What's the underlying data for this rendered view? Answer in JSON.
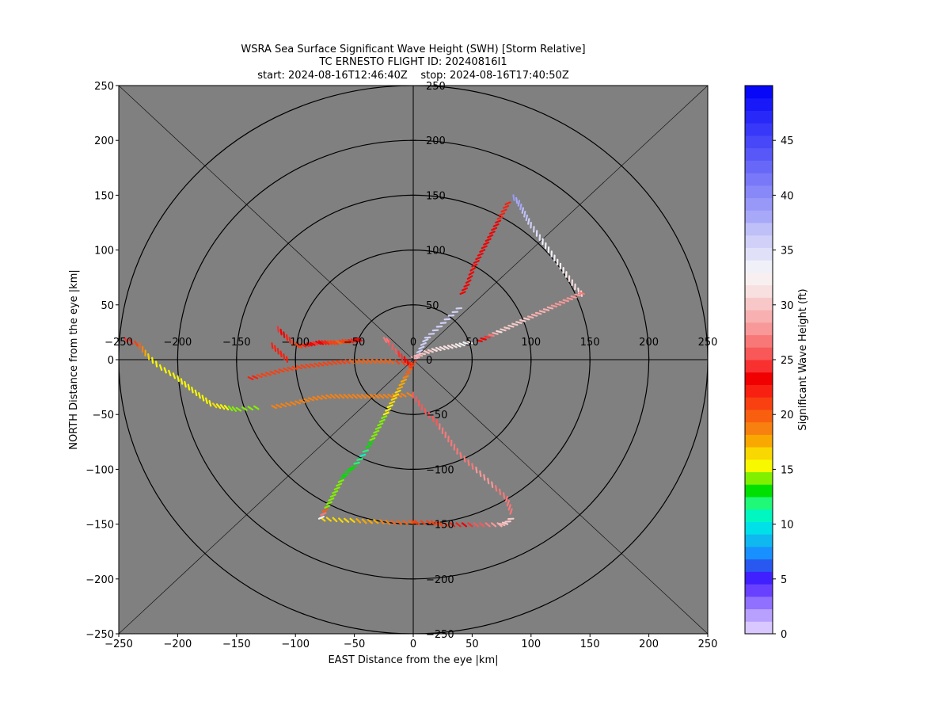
{
  "chart_data": {
    "type": "scatter",
    "title": [
      "WSRA Sea Surface Significant Wave Height (SWH) [Storm Relative]",
      "TC ERNESTO FLIGHT ID: 20240816I1",
      "start: 2024-08-16T12:46:40Z    stop: 2024-08-16T17:40:50Z"
    ],
    "xlabel": "EAST Distance from the eye |km|",
    "ylabel": "NORTH Distance from the eye |km|",
    "xlim": [
      -250,
      250
    ],
    "ylim": [
      -250,
      250
    ],
    "xticks": [
      -250,
      -200,
      -150,
      -100,
      -50,
      0,
      50,
      100,
      150,
      200,
      250
    ],
    "yticks": [
      -250,
      -200,
      -150,
      -100,
      -50,
      0,
      50,
      100,
      150,
      200,
      250
    ],
    "inner_x_tick_labels": [
      "−250",
      "−200",
      "−150",
      "−100",
      "−50",
      "0",
      "50",
      "100",
      "150",
      "200",
      "250"
    ],
    "inner_y_tick_labels": [
      "−250",
      "−200",
      "−150",
      "−100",
      "−50",
      "0",
      "50",
      "100",
      "150",
      "200",
      "250"
    ],
    "outer_x_tick_labels": [
      "−250",
      "−200",
      "−150",
      "−100",
      "−50",
      "0",
      "50",
      "100",
      "150",
      "200",
      "250"
    ],
    "outer_y_tick_labels": [
      "−250",
      "−200",
      "−150",
      "−100",
      "−50",
      "0",
      "50",
      "100",
      "150",
      "200",
      "250"
    ],
    "range_rings_km": [
      50,
      100,
      150,
      200,
      250
    ],
    "background_color": "#808080",
    "colorbar": {
      "label": "Significant Wave Height (ft)",
      "min": 0,
      "max": 50,
      "ticks": [
        0,
        5,
        10,
        15,
        20,
        25,
        30,
        35,
        40,
        45
      ],
      "tick_labels": [
        "0",
        "5",
        "10",
        "15",
        "20",
        "25",
        "30",
        "35",
        "40",
        "45"
      ],
      "colors": [
        "#d8c8ff",
        "#b8a0ff",
        "#9070ff",
        "#6840ff",
        "#4020ff",
        "#2858f0",
        "#1890ff",
        "#10b8f0",
        "#00e0e8",
        "#00f8c0",
        "#20f878",
        "#00e000",
        "#80f000",
        "#f8f800",
        "#f8d800",
        "#f8a800",
        "#f88010",
        "#f86010",
        "#f84010",
        "#f82010",
        "#f00000",
        "#f83030",
        "#f85858",
        "#f87878",
        "#f89898",
        "#f8b0b0",
        "#f8c8c8",
        "#f8e0e0",
        "#f8f0f0",
        "#f0f0f8",
        "#e0e0f8",
        "#d0d0f8",
        "#c0c0f8",
        "#a8a8f8",
        "#9898f8",
        "#8888f8",
        "#7878f8",
        "#6868f8",
        "#5858f8",
        "#4848f8",
        "#3838f8",
        "#2828f8",
        "#1818f8",
        "#0808f8"
      ]
    },
    "series": [
      {
        "x": [
          -245,
          -232,
          -225,
          -215,
          -200,
          -185,
          -170,
          -160,
          -150,
          -140,
          -130
        ],
        "y": [
          20,
          15,
          5,
          -5,
          -15,
          -28,
          -40,
          -42,
          -44,
          -43,
          -42
        ],
        "swh": [
          24,
          20,
          16,
          15,
          15,
          15,
          16,
          15,
          14,
          14,
          15
        ]
      },
      {
        "x": [
          -140,
          -125,
          -110,
          -95,
          -80,
          -65,
          -50,
          -35,
          -20,
          -10,
          0
        ],
        "y": [
          -16,
          -12,
          -8,
          -5,
          -3,
          -1,
          0,
          0,
          0,
          -1,
          -3
        ],
        "swh": [
          22,
          21,
          21,
          21,
          21,
          21,
          20,
          20,
          20,
          21,
          22
        ]
      },
      {
        "x": [
          -120,
          -100,
          -85,
          -70,
          -55,
          -40,
          -25,
          -10,
          0
        ],
        "y": [
          -42,
          -38,
          -34,
          -32,
          -32,
          -32,
          -32,
          -31,
          -30
        ],
        "swh": [
          19,
          19,
          19,
          19,
          19,
          19,
          19,
          19,
          19
        ]
      },
      {
        "x": [
          -115,
          -110,
          -105,
          -100,
          -95,
          -90,
          -85,
          -80,
          -75,
          -70,
          -65,
          -60,
          -55,
          -50,
          -45
        ],
        "y": [
          30,
          25,
          20,
          15,
          14,
          15,
          16,
          17,
          17,
          17,
          17,
          18,
          18,
          19,
          20
        ],
        "swh": [
          24,
          23,
          22,
          21,
          22,
          23,
          24,
          23,
          22,
          21,
          20,
          21,
          22,
          23,
          24
        ]
      },
      {
        "x": [
          -120,
          -115,
          -110,
          -105
        ],
        "y": [
          15,
          10,
          5,
          0
        ],
        "swh": [
          22,
          22,
          22,
          22
        ]
      },
      {
        "x": [
          -25,
          -20,
          -15,
          -10,
          -5,
          0
        ],
        "y": [
          20,
          18,
          10,
          5,
          0,
          -5
        ],
        "swh": [
          27,
          26,
          25,
          24,
          23,
          22
        ]
      },
      {
        "x": [
          0,
          5,
          10,
          20,
          30,
          40
        ],
        "y": [
          0,
          10,
          20,
          30,
          40,
          50
        ],
        "swh": [
          36,
          36,
          36,
          36,
          36,
          36
        ]
      },
      {
        "x": [
          40,
          45,
          50,
          55,
          60,
          65,
          70,
          75,
          80
        ],
        "y": [
          60,
          70,
          85,
          95,
          105,
          115,
          125,
          135,
          145
        ],
        "swh": [
          23,
          23,
          23,
          23,
          23,
          23,
          23,
          22,
          22
        ]
      },
      {
        "x": [
          85,
          90,
          95,
          100,
          110,
          120,
          130,
          140,
          145
        ],
        "y": [
          150,
          145,
          135,
          125,
          110,
          95,
          80,
          65,
          60
        ],
        "swh": [
          39,
          38,
          37,
          36,
          34,
          33,
          32,
          31,
          30
        ]
      },
      {
        "x": [
          145,
          135,
          125,
          115,
          105,
          95,
          85,
          75,
          65,
          55
        ],
        "y": [
          60,
          55,
          50,
          45,
          40,
          35,
          30,
          25,
          20,
          15
        ],
        "swh": [
          27,
          28,
          28,
          29,
          29,
          30,
          30,
          31,
          24,
          23
        ]
      },
      {
        "x": [
          50,
          40,
          30,
          20,
          10,
          5,
          0
        ],
        "y": [
          15,
          12,
          10,
          8,
          5,
          2,
          0
        ],
        "swh": [
          32,
          32,
          31,
          31,
          30,
          29,
          28
        ]
      },
      {
        "x": [
          0,
          10,
          20,
          30,
          40,
          50,
          60,
          70,
          80,
          85
        ],
        "y": [
          -30,
          -45,
          -55,
          -70,
          -85,
          -95,
          -105,
          -115,
          -125,
          -140
        ],
        "swh": [
          26,
          26,
          26,
          27,
          27,
          27,
          28,
          27,
          27,
          26
        ]
      },
      {
        "x": [
          85,
          80,
          75,
          65,
          55,
          45,
          35,
          25,
          15,
          5,
          0
        ],
        "y": [
          -145,
          -150,
          -152,
          -152,
          -152,
          -152,
          -152,
          -152,
          -150,
          -150,
          -150
        ],
        "swh": [
          30,
          30,
          29,
          27,
          25,
          23,
          22,
          21,
          21,
          21,
          21
        ]
      },
      {
        "x": [
          0,
          -10,
          -20,
          -30,
          -40,
          -50,
          -60,
          -70,
          -80
        ],
        "y": [
          -150,
          -150,
          -150,
          -149,
          -149,
          -148,
          -148,
          -147,
          -147
        ],
        "swh": [
          20,
          20,
          19,
          18,
          18,
          17,
          17,
          17,
          17
        ]
      },
      {
        "x": [
          -80,
          -75,
          -70,
          -65,
          -60,
          -55,
          -50,
          -45,
          -40,
          -35,
          -30,
          -25,
          -20,
          -15,
          -10,
          -5,
          0
        ],
        "y": [
          -145,
          -135,
          -125,
          -115,
          -105,
          -100,
          -95,
          -88,
          -80,
          -70,
          -60,
          -50,
          -40,
          -30,
          -20,
          -10,
          0
        ],
        "swh": [
          33,
          14,
          14,
          14,
          13,
          13,
          12,
          11,
          13,
          14,
          14,
          15,
          16,
          17,
          18,
          20,
          22
        ]
      }
    ]
  }
}
